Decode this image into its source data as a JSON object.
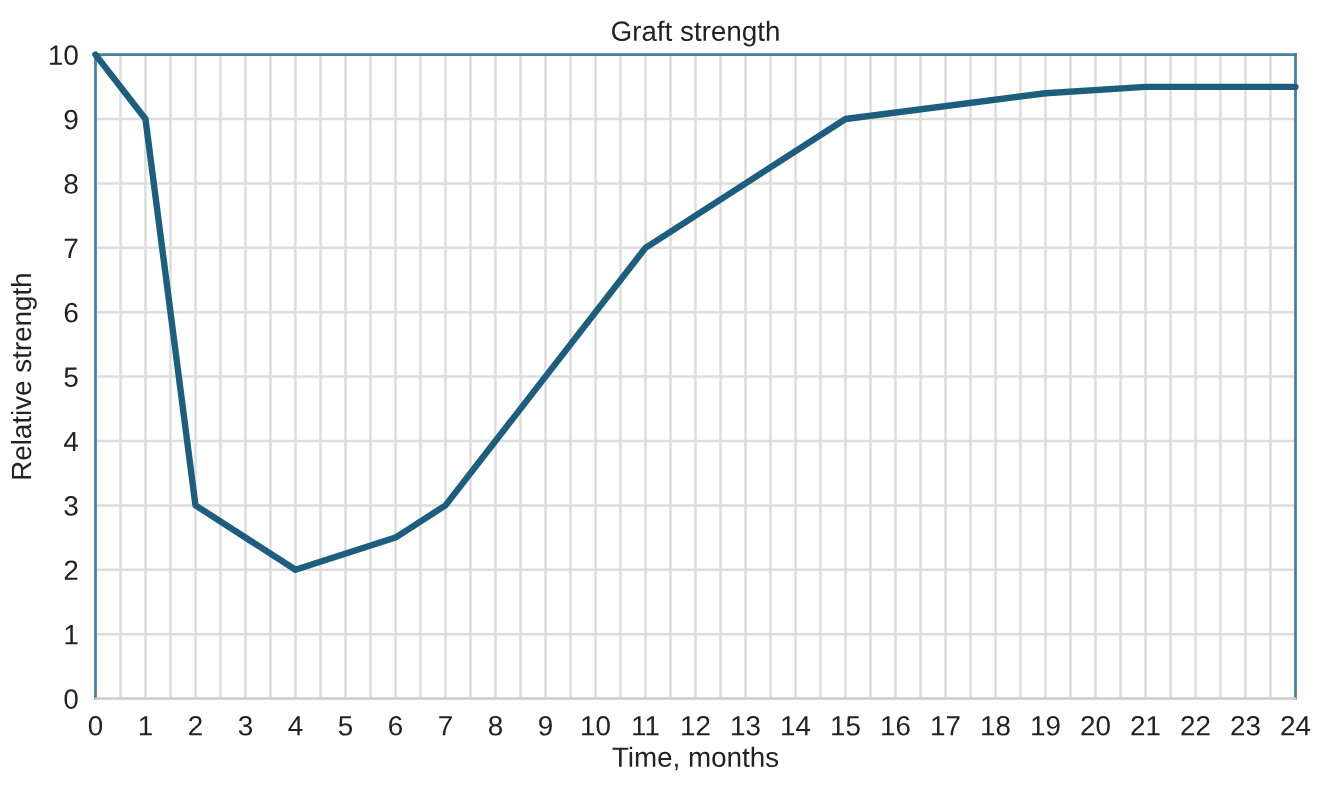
{
  "chart_data": {
    "type": "line",
    "title": "Graft strength",
    "xlabel": "Time, months",
    "ylabel": "Relative strength",
    "x": [
      0,
      1,
      2,
      4,
      6,
      7,
      11,
      15,
      19,
      21,
      22,
      24
    ],
    "series": [
      {
        "color": "#1d5e7e",
        "values": [
          10,
          9,
          3,
          2,
          2.5,
          3,
          7,
          9,
          9.4,
          9.5,
          9.5,
          9.5
        ]
      }
    ],
    "xlim": [
      0,
      24
    ],
    "ylim": [
      0,
      10
    ],
    "xticks": [
      0,
      {
        "value": 0.5,
        "label": null
      },
      1,
      {
        "value": 1.5,
        "label": null
      },
      2,
      {
        "value": 2.5,
        "label": null
      },
      3,
      {
        "value": 3.5,
        "label": null
      },
      4,
      {
        "value": 4.5,
        "label": null
      },
      5,
      {
        "value": 5.5,
        "label": null
      },
      6,
      {
        "value": 6.5,
        "label": null
      },
      7,
      {
        "value": 7.5,
        "label": null
      },
      8,
      {
        "value": 8.5,
        "label": null
      },
      9,
      {
        "value": 9.5,
        "label": null
      },
      10,
      {
        "value": 10.5,
        "label": null
      },
      11,
      {
        "value": 11.5,
        "label": null
      },
      12,
      {
        "value": 12.5,
        "label": null
      },
      13,
      {
        "value": 13.5,
        "label": null
      },
      14,
      {
        "value": 14.5,
        "label": null
      },
      15,
      {
        "value": 15.5,
        "label": null
      },
      16,
      {
        "value": 16.5,
        "label": null
      },
      17,
      {
        "value": 17.5,
        "label": null
      },
      18,
      {
        "value": 18.5,
        "label": null
      },
      19,
      {
        "value": 19.5,
        "label": null
      },
      20,
      {
        "value": 20.5,
        "label": null
      },
      21,
      {
        "value": 21.5,
        "label": null
      },
      22,
      {
        "value": 22.5,
        "label": null
      },
      23,
      {
        "value": 23.5,
        "label": null
      },
      24
    ],
    "yticks": [
      0,
      1,
      2,
      3,
      4,
      5,
      6,
      7,
      8,
      9,
      10
    ],
    "grid": true,
    "marker": "none",
    "line_style": "solid"
  }
}
